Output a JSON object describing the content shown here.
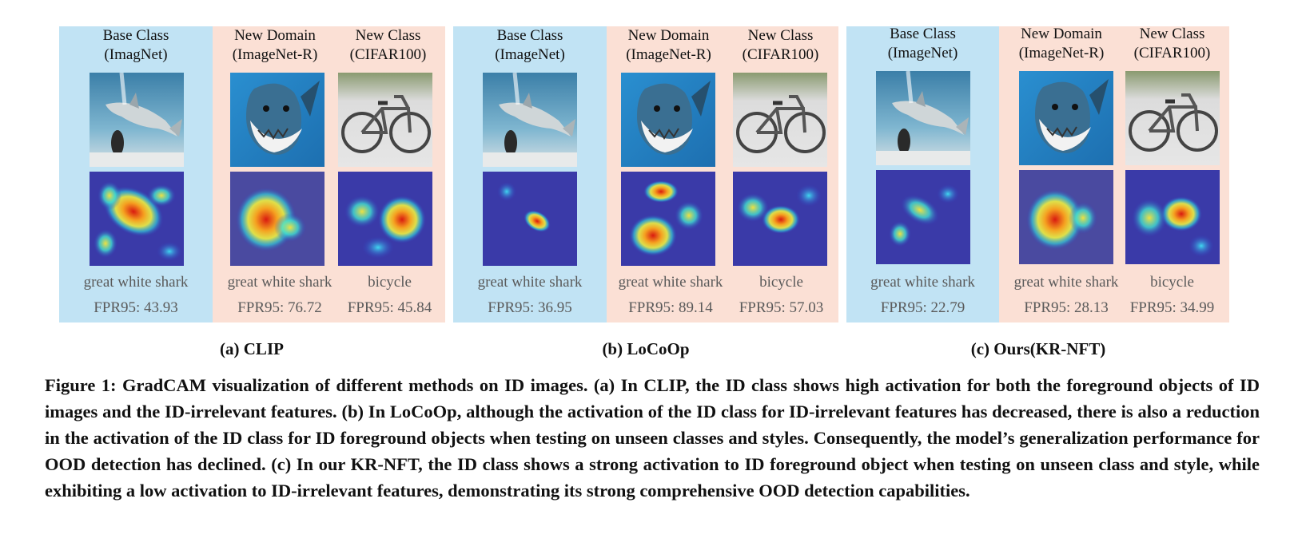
{
  "panels": [
    {
      "subcaption": "(a) CLIP",
      "columns": [
        {
          "header_line1": "Base Class",
          "header_line2": "(ImagNet)",
          "label": "great white shark",
          "fpr": "FPR95: 43.93"
        },
        {
          "header_line1": "New Domain",
          "header_line2": "(ImageNet-R)",
          "label": "great white shark",
          "fpr": "FPR95: 76.72"
        },
        {
          "header_line1": "New Class",
          "header_line2": "(CIFAR100)",
          "label": "bicycle",
          "fpr": "FPR95: 45.84"
        }
      ]
    },
    {
      "subcaption": "(b) LoCoOp",
      "columns": [
        {
          "header_line1": "Base Class",
          "header_line2": "(ImageNet)",
          "label": "great white shark",
          "fpr": "FPR95: 36.95"
        },
        {
          "header_line1": "New Domain",
          "header_line2": "(ImageNet-R)",
          "label": "great white shark",
          "fpr": "FPR95: 89.14"
        },
        {
          "header_line1": "New Class",
          "header_line2": "(CIFAR100)",
          "label": "bicycle",
          "fpr": "FPR95: 57.03"
        }
      ]
    },
    {
      "subcaption": "(c) Ours(KR-NFT)",
      "columns": [
        {
          "header_line1": "Base Class",
          "header_line2": "(ImageNet)",
          "label": "great white shark",
          "fpr": "FPR95: 22.79"
        },
        {
          "header_line1": "New Domain",
          "header_line2": "(ImageNet-R)",
          "label": "great white shark",
          "fpr": "FPR95: 28.13"
        },
        {
          "header_line1": "New Class",
          "header_line2": "(CIFAR100)",
          "label": "bicycle",
          "fpr": "FPR95: 34.99"
        }
      ]
    }
  ],
  "caption": "Figure 1: GradCAM visualization of different methods on ID images. (a) In CLIP, the ID class shows high activation for both the foreground objects of ID images and the ID-irrelevant features. (b) In LoCoOp, although the activation of the ID class for ID-irrelevant features has decreased, there is also a reduction in the activation of the ID class for ID foreground objects when testing on unseen classes and styles. Consequently, the model’s generalization performance for OOD detection has declined. (c) In our KR-NFT, the ID class shows a strong activation to ID foreground object when testing on unseen class and style, while exhibiting a low activation to ID-irrelevant features, demonstrating its strong comprehensive OOD detection capabilities."
}
